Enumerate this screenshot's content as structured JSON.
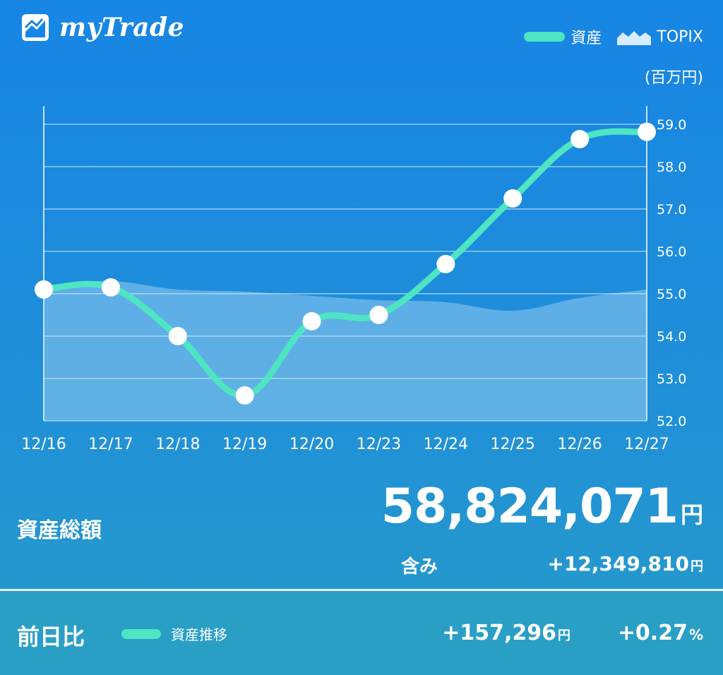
{
  "app": {
    "name": "myTrade"
  },
  "legend": {
    "assets_label": "資産",
    "topix_label": "TOPIX",
    "unit": "(百万円)"
  },
  "colors": {
    "asset_line": "#4ee5c3",
    "topix_area": "#ffffff",
    "background_top": "#1785e4",
    "background_bottom": "#279bc9"
  },
  "chart_data": {
    "type": "line",
    "categories": [
      "12/16",
      "12/17",
      "12/18",
      "12/19",
      "12/20",
      "12/23",
      "12/24",
      "12/25",
      "12/26",
      "12/27"
    ],
    "series": [
      {
        "name": "資産",
        "values": [
          55.1,
          55.15,
          54.0,
          52.6,
          54.35,
          54.5,
          55.7,
          57.25,
          58.65,
          58.82
        ]
      },
      {
        "name": "TOPIX",
        "values": [
          55.2,
          55.3,
          55.1,
          55.05,
          54.95,
          54.85,
          54.8,
          54.6,
          54.9,
          55.1
        ]
      }
    ],
    "y_ticks": [
      "59.0",
      "58.0",
      "57.0",
      "56.0",
      "55.0",
      "54.0",
      "53.0",
      "52.0"
    ],
    "ylim": [
      52.0,
      59.0
    ],
    "grid": true,
    "y_axis_side": "right",
    "legend_position": "top-right"
  },
  "summary": {
    "total_label": "資産総額",
    "total_value": "58,824,071",
    "total_unit": "円",
    "included_label": "含み",
    "included_value": "+12,349,810",
    "included_unit": "円"
  },
  "daily": {
    "label": "前日比",
    "legend_label": "資産推移",
    "change_value": "+157,296",
    "change_unit": "円",
    "change_percent": "+0.27",
    "percent_unit": "%"
  }
}
